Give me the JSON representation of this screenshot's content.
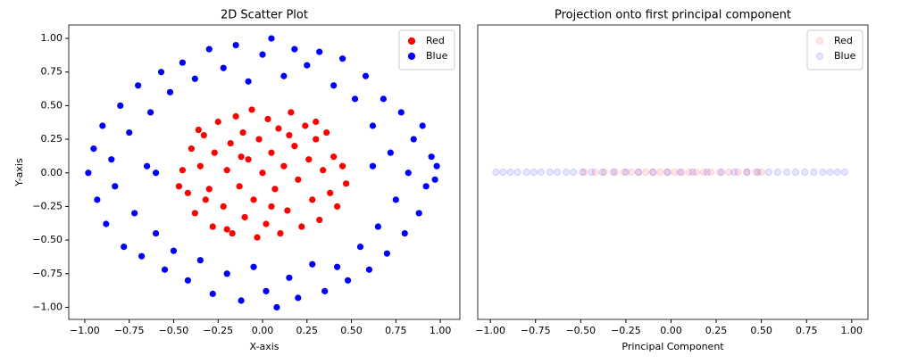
{
  "chart_data": [
    {
      "type": "scatter",
      "title": "2D Scatter Plot",
      "x_label": "X-axis",
      "y_label": "Y-axis",
      "xlim": [
        -1.09,
        1.11
      ],
      "ylim": [
        -1.09,
        1.1
      ],
      "xticks": [
        {
          "value": -1,
          "label": "−1.00"
        },
        {
          "value": -0.75,
          "label": "−0.75"
        },
        {
          "value": -0.5,
          "label": "−0.50"
        },
        {
          "value": -0.25,
          "label": "−0.25"
        },
        {
          "value": 0,
          "label": "0.00"
        },
        {
          "value": 0.25,
          "label": "0.25"
        },
        {
          "value": 0.5,
          "label": "0.50"
        },
        {
          "value": 0.75,
          "label": "0.75"
        },
        {
          "value": 1,
          "label": "1.00"
        }
      ],
      "yticks": [
        {
          "value": -1,
          "label": "−1.00"
        },
        {
          "value": -0.75,
          "label": "−0.75"
        },
        {
          "value": -0.5,
          "label": "−0.50"
        },
        {
          "value": -0.25,
          "label": "−0.25"
        },
        {
          "value": 0,
          "label": "0.00"
        },
        {
          "value": 0.25,
          "label": "0.25"
        },
        {
          "value": 0.5,
          "label": "0.50"
        },
        {
          "value": 0.75,
          "label": "0.75"
        },
        {
          "value": 1,
          "label": "1.00"
        }
      ],
      "legend": "upper right",
      "alpha": 1,
      "series": [
        {
          "name": "Red",
          "color": "#ff0000",
          "x": [
            -0.45,
            -0.42,
            -0.4,
            -0.38,
            -0.35,
            -0.33,
            -0.3,
            -0.28,
            -0.27,
            -0.25,
            -0.22,
            -0.2,
            -0.18,
            -0.17,
            -0.15,
            -0.13,
            -0.11,
            -0.1,
            -0.08,
            -0.06,
            -0.05,
            -0.03,
            -0.02,
            0,
            0.02,
            0.03,
            0.05,
            0.07,
            0.09,
            0.1,
            0.12,
            0.14,
            0.16,
            0.18,
            0.2,
            0.22,
            0.24,
            0.26,
            0.28,
            0.3,
            0.32,
            0.34,
            0.36,
            0.38,
            0.4,
            0.42,
            0.45,
            0.47,
            -0.47,
            -0.36,
            0.3,
            -0.2,
            0.15,
            -0.32,
            0.05,
            -0.12
          ],
          "y": [
            0.02,
            -0.15,
            0.18,
            -0.3,
            0.05,
            0.28,
            -0.12,
            -0.4,
            0.15,
            0.38,
            -0.25,
            0.02,
            0.22,
            -0.45,
            0.42,
            -0.1,
            0.3,
            -0.33,
            0.1,
            0.47,
            -0.2,
            -0.48,
            0.25,
            0,
            -0.38,
            0.4,
            0.15,
            -0.12,
            0.33,
            -0.45,
            0.05,
            -0.28,
            0.45,
            0.2,
            -0.05,
            -0.4,
            0.35,
            0.1,
            -0.2,
            0.25,
            -0.35,
            0.02,
            0.3,
            -0.15,
            0.12,
            -0.25,
            0.05,
            -0.08,
            -0.1,
            0.32,
            0.38,
            -0.42,
            0.28,
            -0.2,
            -0.25,
            0.12
          ]
        },
        {
          "name": "Blue",
          "color": "#0000ff",
          "x": [
            -0.98,
            -0.95,
            -0.93,
            -0.9,
            -0.88,
            -0.85,
            -0.83,
            -0.8,
            -0.78,
            -0.75,
            -0.72,
            -0.7,
            -0.68,
            -0.65,
            -0.63,
            -0.6,
            -0.57,
            -0.55,
            -0.52,
            -0.5,
            -0.45,
            -0.42,
            -0.38,
            -0.35,
            -0.3,
            -0.28,
            -0.22,
            -0.2,
            -0.15,
            -0.12,
            -0.08,
            -0.05,
            0,
            0.02,
            0.05,
            0.08,
            0.12,
            0.15,
            0.18,
            0.2,
            0.25,
            0.28,
            0.32,
            0.35,
            0.4,
            0.42,
            0.45,
            0.48,
            0.52,
            0.55,
            0.58,
            0.6,
            0.62,
            0.65,
            0.68,
            0.7,
            0.72,
            0.75,
            0.78,
            0.8,
            0.82,
            0.85,
            0.88,
            0.9,
            0.92,
            0.95,
            0.97,
            0.98,
            -0.6,
            0.62
          ],
          "y": [
            0,
            0.18,
            -0.2,
            0.35,
            -0.38,
            0.1,
            -0.1,
            0.5,
            -0.55,
            0.3,
            -0.3,
            0.65,
            -0.62,
            0.05,
            0.45,
            -0.45,
            0.75,
            -0.72,
            0.6,
            -0.58,
            0.82,
            -0.8,
            0.7,
            -0.65,
            0.92,
            -0.9,
            0.78,
            -0.75,
            0.95,
            -0.95,
            0.68,
            -0.7,
            0.88,
            -0.88,
            1,
            -1,
            0.72,
            -0.78,
            0.92,
            -0.93,
            0.8,
            -0.68,
            0.9,
            -0.88,
            0.65,
            -0.7,
            0.85,
            -0.8,
            0.55,
            -0.55,
            0.72,
            -0.72,
            0.35,
            -0.4,
            0.55,
            -0.6,
            0.15,
            -0.2,
            0.45,
            -0.45,
            0,
            0.25,
            -0.3,
            0.35,
            -0.1,
            0.12,
            -0.05,
            0.05,
            0,
            0.05
          ]
        }
      ]
    },
    {
      "type": "strip",
      "title": "Projection onto first principal component",
      "x_label": "Principal Component",
      "xlim": [
        -1.07,
        1.09
      ],
      "ylim": [
        -0.055,
        0.055
      ],
      "xticks": [
        {
          "value": -1,
          "label": "−1.00"
        },
        {
          "value": -0.75,
          "label": "−0.75"
        },
        {
          "value": -0.5,
          "label": "−0.50"
        },
        {
          "value": -0.25,
          "label": "−0.25"
        },
        {
          "value": 0,
          "label": "0.00"
        },
        {
          "value": 0.25,
          "label": "0.25"
        },
        {
          "value": 0.5,
          "label": "0.50"
        },
        {
          "value": 0.75,
          "label": "0.75"
        },
        {
          "value": 1,
          "label": "1.00"
        }
      ],
      "legend": "upper right",
      "alpha": 0.1,
      "series": [
        {
          "name": "Red",
          "color": "#ff0000",
          "values": [
            -0.48,
            -0.42,
            -0.37,
            -0.31,
            -0.26,
            -0.22,
            -0.18,
            -0.14,
            -0.1,
            -0.06,
            -0.02,
            0.02,
            0.06,
            0.1,
            0.14,
            0.18,
            0.22,
            0.27,
            0.32,
            0.37,
            0.42,
            0.47,
            0.5
          ]
        },
        {
          "name": "Blue",
          "color": "#0000ff",
          "values": [
            -0.97,
            -0.93,
            -0.89,
            -0.85,
            -0.8,
            -0.76,
            -0.72,
            -0.67,
            -0.63,
            -0.58,
            -0.54,
            -0.49,
            -0.44,
            -0.38,
            -0.32,
            -0.25,
            -0.18,
            -0.1,
            -0.02,
            0.05,
            0.12,
            0.2,
            0.28,
            0.35,
            0.42,
            0.48,
            0.54,
            0.59,
            0.64,
            0.69,
            0.74,
            0.79,
            0.84,
            0.88,
            0.92,
            0.96
          ]
        }
      ]
    }
  ]
}
